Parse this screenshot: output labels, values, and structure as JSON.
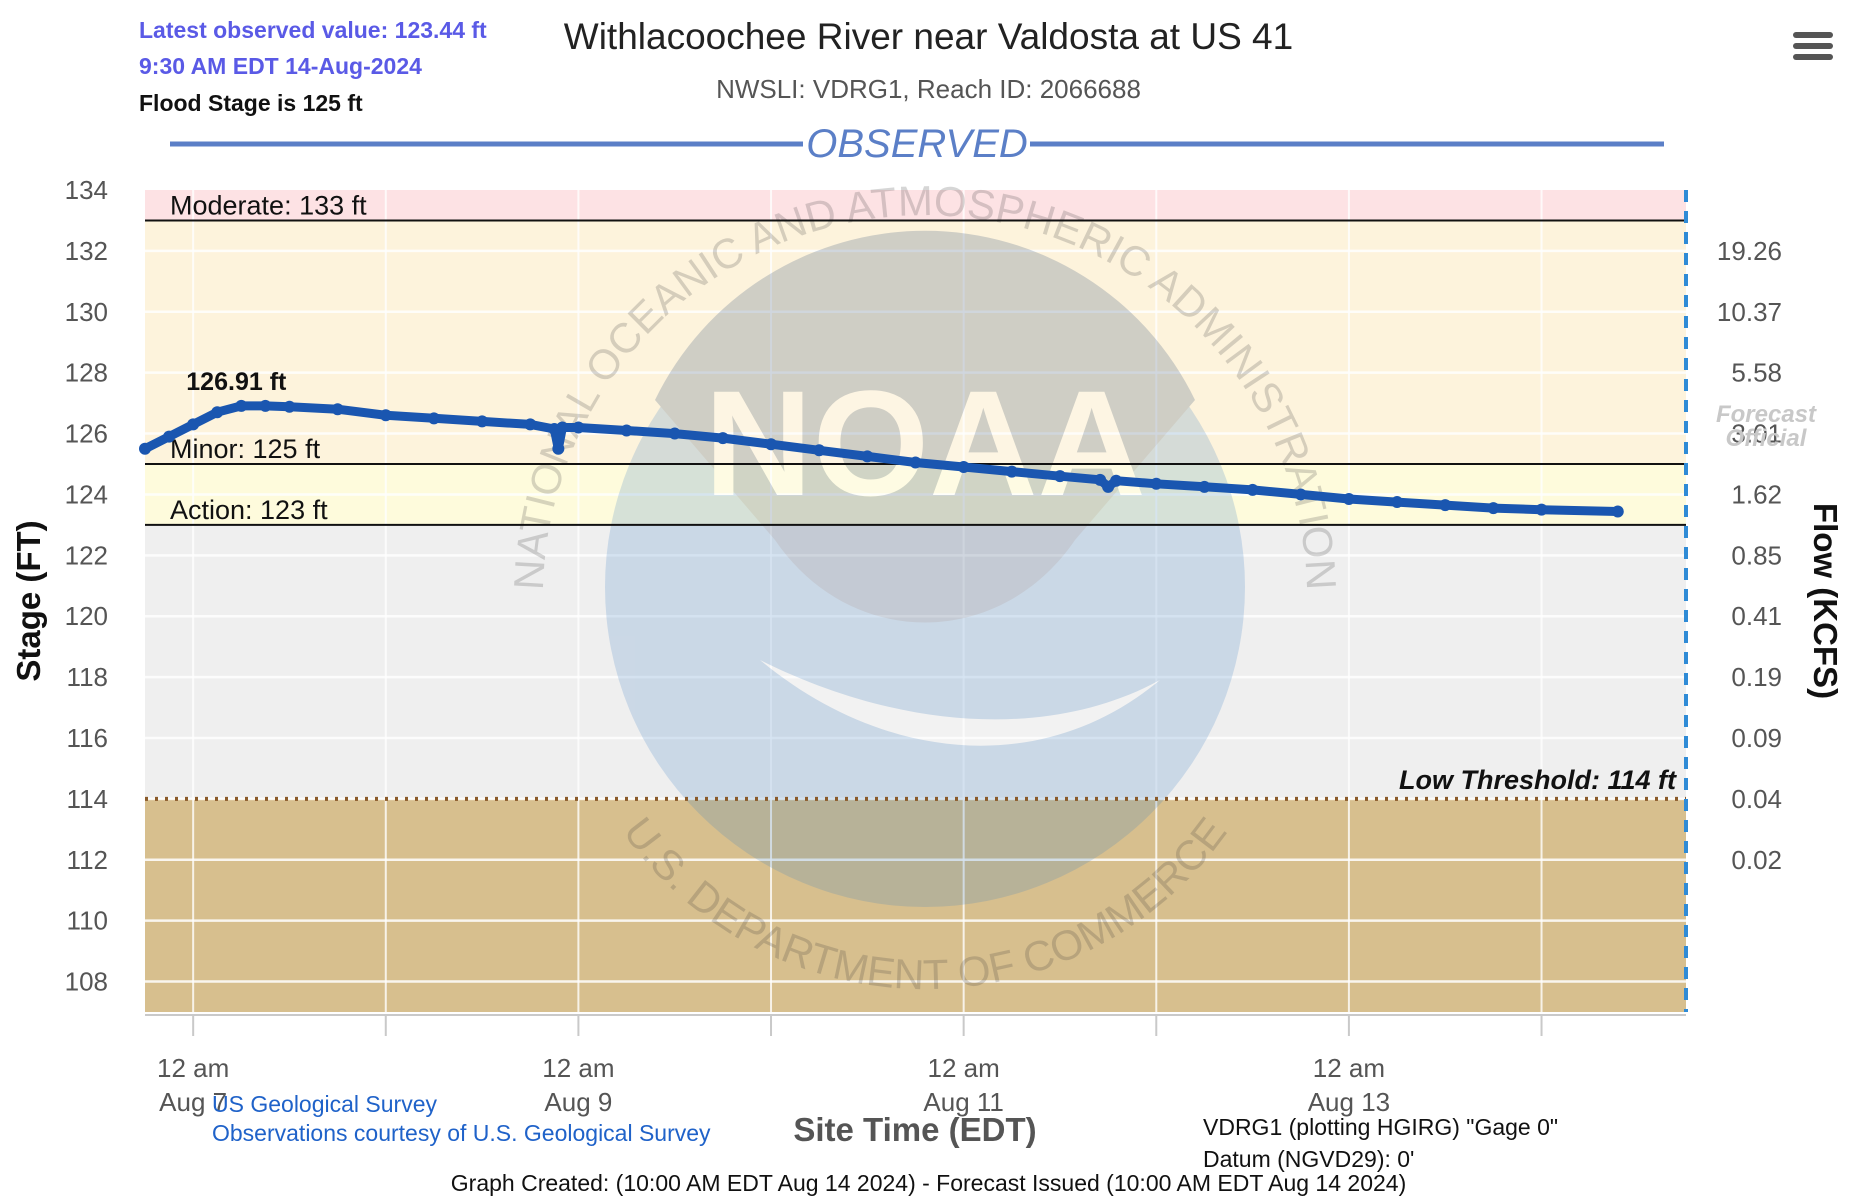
{
  "header": {
    "latest_value": "Latest observed value: 123.44 ft",
    "latest_time": "9:30 AM EDT 14-Aug-2024",
    "flood_stage": "Flood Stage is 125 ft"
  },
  "menu": {
    "icon": "hamburger-menu-icon"
  },
  "colors": {
    "series": "#1a56b0",
    "moderate_band": "#fde2e4",
    "minor_band": "#fdf3dc",
    "action_band": "#fefbdc",
    "normal_band": "#efefef",
    "low_band": "#d7bf8e",
    "observed_label": "#5b7fc7"
  },
  "chart_data": {
    "type": "line",
    "title": "Withlacoochee River near Valdosta at US 41",
    "subtitle": "NWSLI: VDRG1, Reach ID: 2066688",
    "section_label": "OBSERVED",
    "xlabel": "Site Time (EDT)",
    "ylabel": "Stage (FT)",
    "y2label": "Flow (KCFS)",
    "ylim": [
      107,
      134
    ],
    "xlim": [
      "2024-08-06T18:00",
      "2024-08-14T18:00"
    ],
    "yticks": [
      108,
      110,
      112,
      114,
      116,
      118,
      120,
      122,
      124,
      126,
      128,
      130,
      132,
      134
    ],
    "y2ticks": [
      {
        "stage": 132,
        "label": "19.26"
      },
      {
        "stage": 130,
        "label": "10.37"
      },
      {
        "stage": 128,
        "label": "5.58"
      },
      {
        "stage": 126,
        "label": "3.01"
      },
      {
        "stage": 124,
        "label": "1.62"
      },
      {
        "stage": 122,
        "label": "0.85"
      },
      {
        "stage": 120,
        "label": "0.41"
      },
      {
        "stage": 118,
        "label": "0.19"
      },
      {
        "stage": 116,
        "label": "0.09"
      },
      {
        "stage": 114,
        "label": "0.04"
      },
      {
        "stage": 112,
        "label": "0.02"
      }
    ],
    "xticks": [
      {
        "x": "2024-08-07T00:00",
        "label1": "12 am",
        "label2": "Aug 7"
      },
      {
        "x": "2024-08-09T00:00",
        "label1": "12 am",
        "label2": "Aug 9"
      },
      {
        "x": "2024-08-11T00:00",
        "label1": "12 am",
        "label2": "Aug 11"
      },
      {
        "x": "2024-08-13T00:00",
        "label1": "12 am",
        "label2": "Aug 13"
      }
    ],
    "xminor": [
      "2024-08-08T00:00",
      "2024-08-10T00:00",
      "2024-08-12T00:00",
      "2024-08-14T00:00"
    ],
    "thresholds": [
      {
        "name": "Moderate",
        "label": "Moderate: 133 ft",
        "value": 133
      },
      {
        "name": "Minor",
        "label": "Minor: 125 ft",
        "value": 125
      },
      {
        "name": "Action",
        "label": "Action: 123 ft",
        "value": 123
      },
      {
        "name": "Low Threshold",
        "label": "Low Threshold: 114 ft",
        "value": 114
      }
    ],
    "peak": {
      "x": "2024-08-07T06:00",
      "y": 126.91,
      "label": "126.91 ft"
    },
    "series": [
      {
        "points": [
          {
            "x": "2024-08-06T18:00",
            "y": 125.5
          },
          {
            "x": "2024-08-06T21:00",
            "y": 125.9
          },
          {
            "x": "2024-08-07T00:00",
            "y": 126.3
          },
          {
            "x": "2024-08-07T03:00",
            "y": 126.7
          },
          {
            "x": "2024-08-07T06:00",
            "y": 126.91
          },
          {
            "x": "2024-08-07T09:00",
            "y": 126.91
          },
          {
            "x": "2024-08-07T12:00",
            "y": 126.88
          },
          {
            "x": "2024-08-07T18:00",
            "y": 126.8
          },
          {
            "x": "2024-08-08T00:00",
            "y": 126.6
          },
          {
            "x": "2024-08-08T06:00",
            "y": 126.5
          },
          {
            "x": "2024-08-08T12:00",
            "y": 126.4
          },
          {
            "x": "2024-08-08T18:00",
            "y": 126.3
          },
          {
            "x": "2024-08-08T21:00",
            "y": 126.15
          },
          {
            "x": "2024-08-08T21:30",
            "y": 125.5
          },
          {
            "x": "2024-08-08T22:00",
            "y": 126.2
          },
          {
            "x": "2024-08-09T00:00",
            "y": 126.2
          },
          {
            "x": "2024-08-09T06:00",
            "y": 126.1
          },
          {
            "x": "2024-08-09T12:00",
            "y": 126.0
          },
          {
            "x": "2024-08-09T18:00",
            "y": 125.85
          },
          {
            "x": "2024-08-10T00:00",
            "y": 125.65
          },
          {
            "x": "2024-08-10T06:00",
            "y": 125.45
          },
          {
            "x": "2024-08-10T12:00",
            "y": 125.25
          },
          {
            "x": "2024-08-10T18:00",
            "y": 125.05
          },
          {
            "x": "2024-08-11T00:00",
            "y": 124.9
          },
          {
            "x": "2024-08-11T06:00",
            "y": 124.75
          },
          {
            "x": "2024-08-11T12:00",
            "y": 124.6
          },
          {
            "x": "2024-08-11T17:00",
            "y": 124.48
          },
          {
            "x": "2024-08-11T18:00",
            "y": 124.25
          },
          {
            "x": "2024-08-11T19:00",
            "y": 124.45
          },
          {
            "x": "2024-08-12T00:00",
            "y": 124.35
          },
          {
            "x": "2024-08-12T06:00",
            "y": 124.25
          },
          {
            "x": "2024-08-12T12:00",
            "y": 124.15
          },
          {
            "x": "2024-08-12T18:00",
            "y": 124.0
          },
          {
            "x": "2024-08-13T00:00",
            "y": 123.85
          },
          {
            "x": "2024-08-13T06:00",
            "y": 123.75
          },
          {
            "x": "2024-08-13T12:00",
            "y": 123.65
          },
          {
            "x": "2024-08-13T18:00",
            "y": 123.55
          },
          {
            "x": "2024-08-14T00:00",
            "y": 123.5
          },
          {
            "x": "2024-08-14T09:30",
            "y": 123.44
          }
        ]
      }
    ],
    "forecast_watermark": [
      "Forecast",
      "Official"
    ],
    "grid": true
  },
  "watermark": {
    "arc_top": "NATIONAL OCEANIC AND ATMOSPHERIC ADMINISTRATION",
    "arc_bottom": "U.S. DEPARTMENT OF COMMERCE",
    "logo": "NOAA"
  },
  "footer": {
    "source_link": "US Geological Survey",
    "courtesy_link": "Observations courtesy of U.S. Geological Survey",
    "gage_note_1": "VDRG1 (plotting HGIRG) \"Gage 0\"",
    "gage_note_2": "Datum (NGVD29): 0'",
    "created": "Graph Created: (10:00 AM EDT Aug 14 2024) - Forecast Issued (10:00 AM EDT Aug 14 2024)"
  }
}
